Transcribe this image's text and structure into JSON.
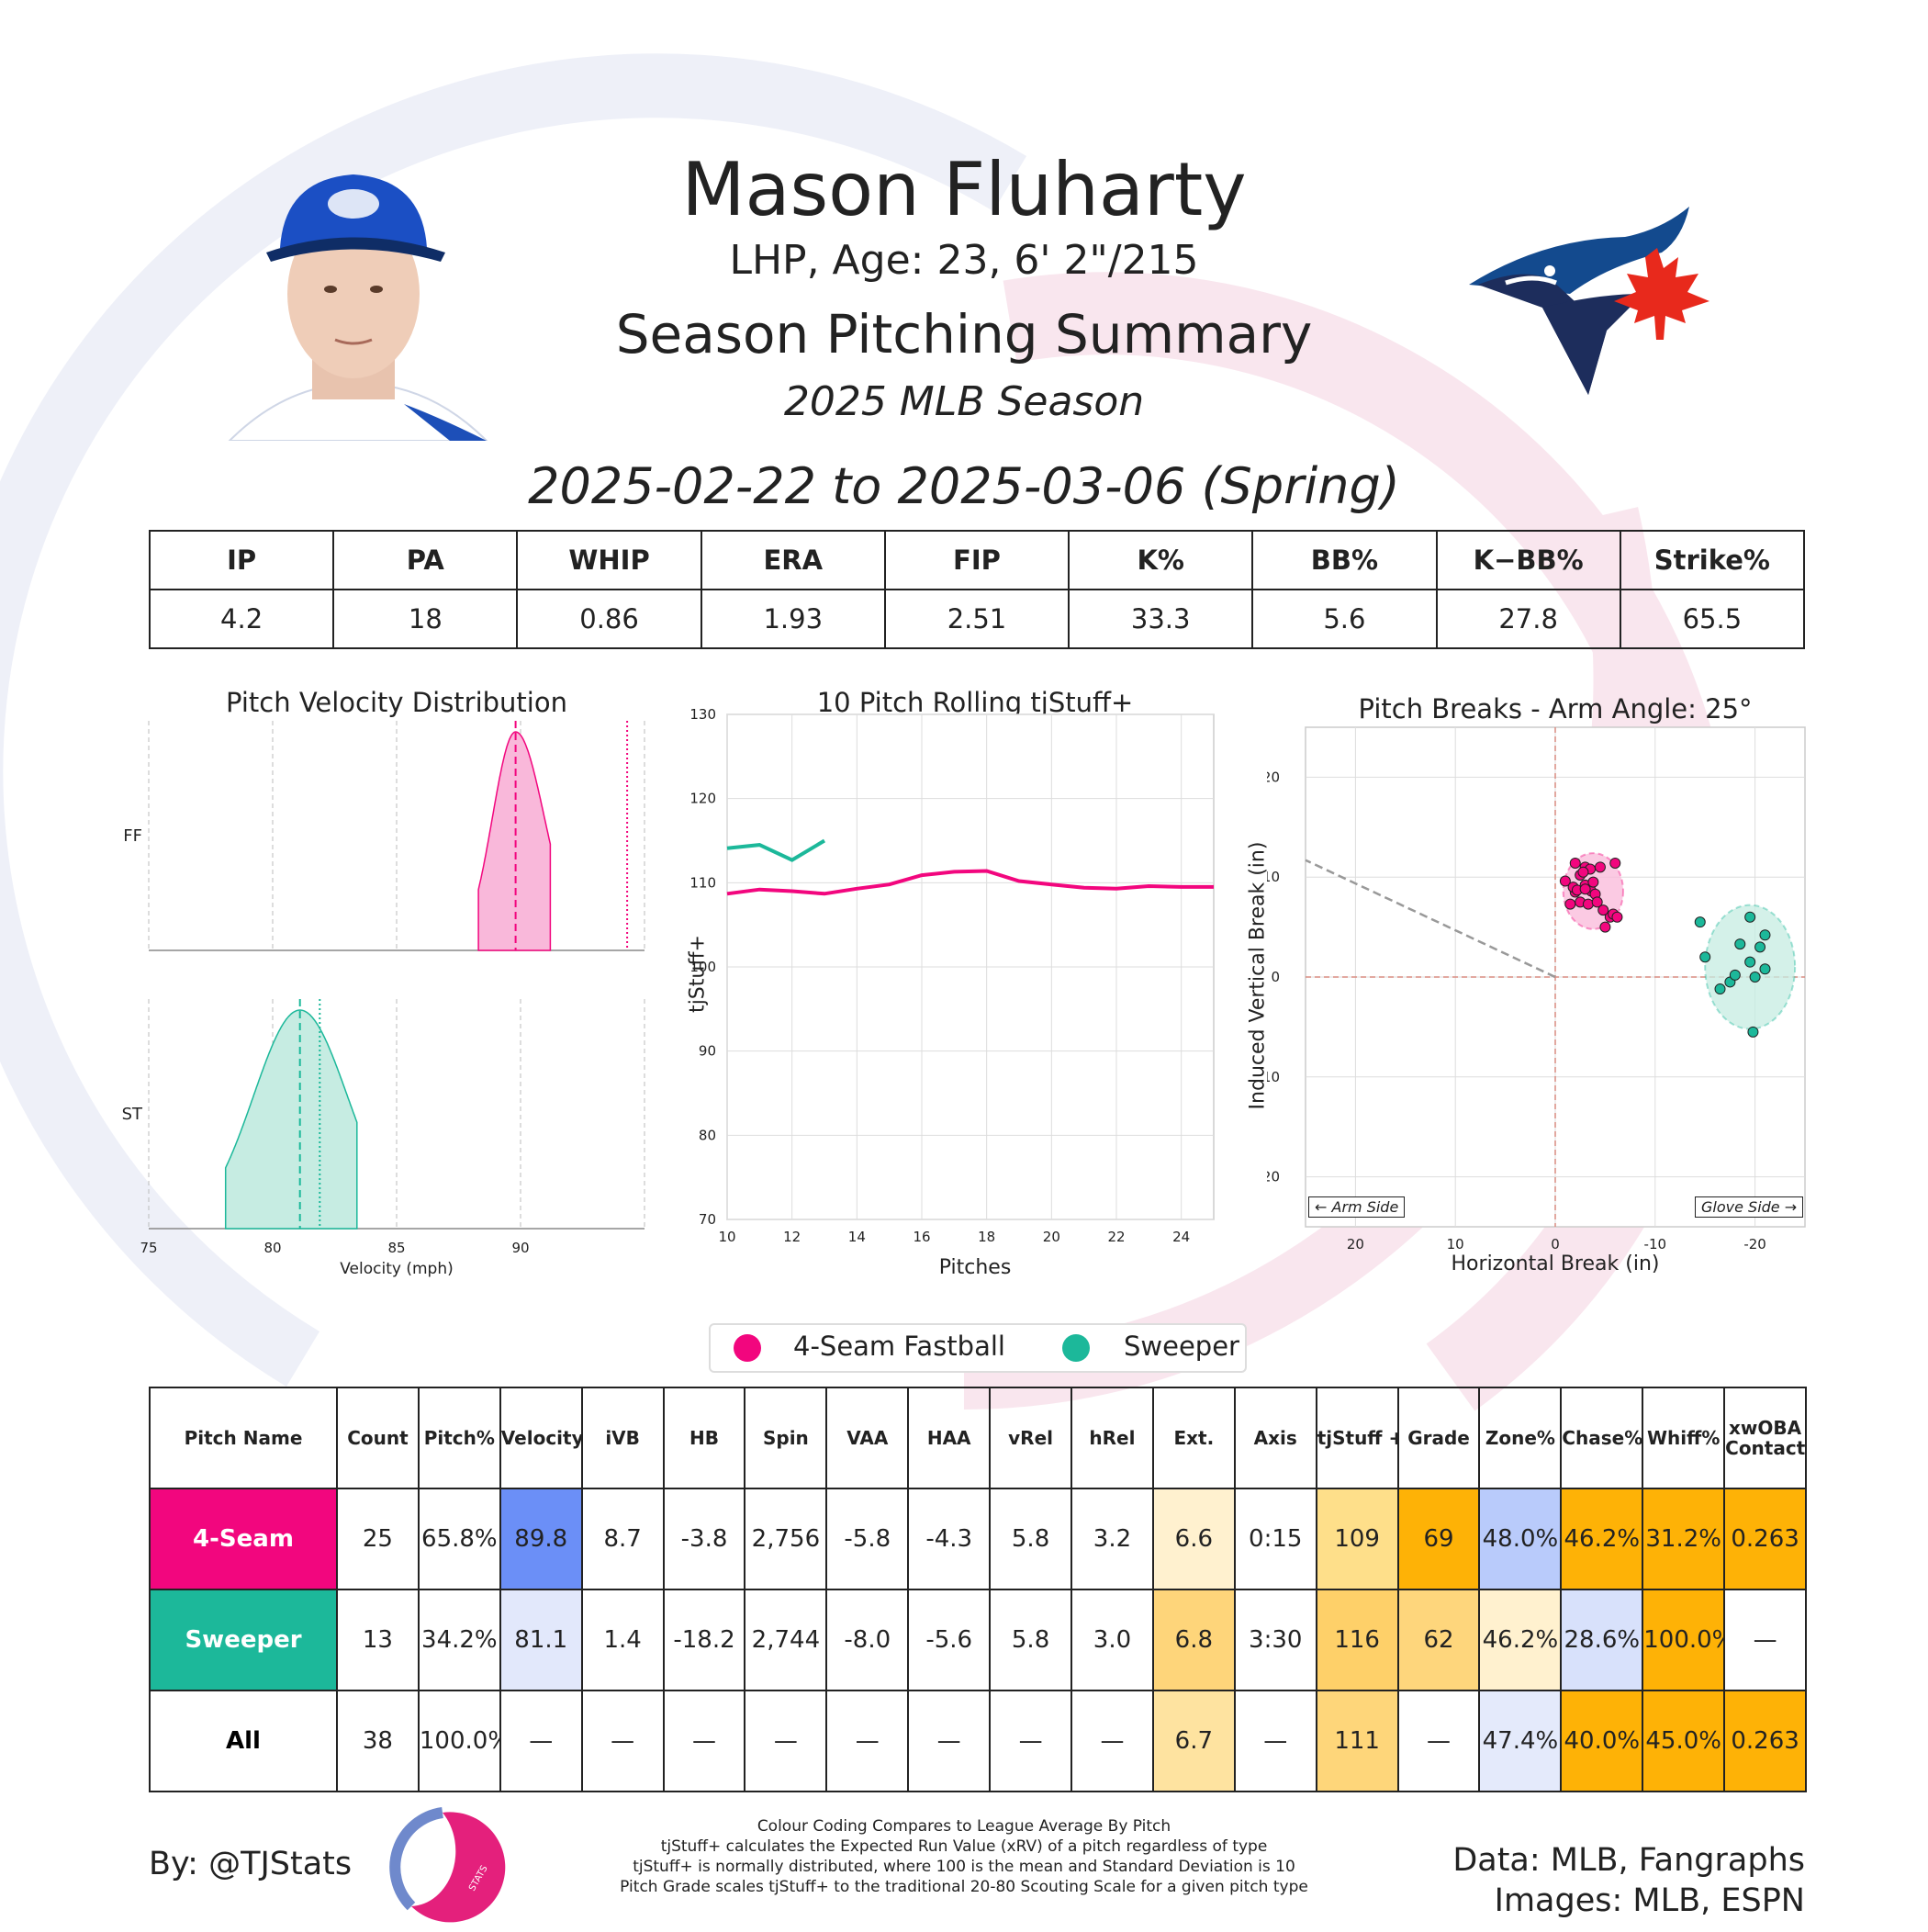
{
  "header": {
    "player_name": "Mason Fluharty",
    "player_info": "LHP, Age: 23, 6' 2\"/215",
    "summary_title": "Season Pitching Summary",
    "season_label": "2025 MLB Season",
    "date_range": "2025-02-22 to 2025-03-06 (Spring)"
  },
  "stat_table": {
    "headers": [
      "IP",
      "PA",
      "WHIP",
      "ERA",
      "FIP",
      "K%",
      "BB%",
      "K−BB%",
      "Strike%"
    ],
    "values": [
      "4.2",
      "18",
      "0.86",
      "1.93",
      "2.51",
      "33.3",
      "5.6",
      "27.8",
      "65.5"
    ]
  },
  "colors": {
    "fastball": "#f2067e",
    "sweeper": "#1cb89a",
    "fastball_fill": "#f9b8da",
    "sweeper_fill": "#c6ece2"
  },
  "chart_data": [
    {
      "type": "area",
      "title": "Pitch Velocity Distribution",
      "xlabel": "Velocity (mph)",
      "xlim": [
        75,
        95
      ],
      "xticks": [
        "75",
        "80",
        "85",
        "90"
      ],
      "series": [
        {
          "name": "FF",
          "range": [
            88.3,
            91.2
          ],
          "mode": 89.8,
          "mean": 89.8,
          "league_avg": 94.3
        },
        {
          "name": "ST",
          "range": [
            78.1,
            83.4
          ],
          "mode": 81.1,
          "mean": 81.1,
          "league_avg": 81.9
        }
      ]
    },
    {
      "type": "line",
      "title": "10 Pitch Rolling tjStuff+",
      "xlabel": "Pitches",
      "ylabel": "tjStuff+",
      "xlim": [
        10,
        25
      ],
      "ylim": [
        70,
        130
      ],
      "xticks": [
        "10",
        "12",
        "14",
        "16",
        "18",
        "20",
        "22",
        "24"
      ],
      "yticks": [
        "70",
        "80",
        "90",
        "100",
        "110",
        "120",
        "130"
      ],
      "series": [
        {
          "name": "Sweeper",
          "x": [
            10,
            11,
            12,
            13
          ],
          "y": [
            114.1,
            114.5,
            112.7,
            115.0
          ]
        },
        {
          "name": "4-Seam Fastball",
          "x": [
            10,
            11,
            12,
            13,
            14,
            15,
            16,
            17,
            18,
            19,
            20,
            21,
            22,
            23,
            24,
            25
          ],
          "y": [
            108.7,
            109.2,
            109.0,
            108.7,
            109.3,
            109.8,
            110.9,
            111.3,
            111.4,
            110.2,
            109.8,
            109.4,
            109.3,
            109.6,
            109.5,
            109.5
          ]
        }
      ]
    },
    {
      "type": "scatter",
      "title": "Pitch Breaks - Arm Angle: 25°",
      "xlabel": "Horizontal Break (in)",
      "ylabel": "Induced Vertical Break (in)",
      "xlim": [
        25,
        -25
      ],
      "ylim": [
        -25,
        25
      ],
      "xticks": [
        "20",
        "10",
        "0",
        "-10",
        "-20"
      ],
      "yticks": [
        "20",
        "10",
        "0",
        "-10",
        "-20"
      ],
      "arm_side_label": "← Arm Side",
      "glove_side_label": "Glove Side →",
      "arm_angle_line": {
        "from": [
          0,
          0
        ],
        "to": [
          25,
          11.7
        ]
      },
      "series": [
        {
          "name": "4-Seam Fastball",
          "x": [
            -1.0,
            -2.0,
            -2.5,
            -3.0,
            -3.5,
            -4.5,
            -6.0,
            -1.8,
            -2.2,
            -3.0,
            -3.6,
            -4.0,
            -2.5,
            -3.3,
            -4.2,
            -1.5,
            -5.5,
            -5.8,
            -6.2,
            -5.0,
            -2.8,
            -3.8,
            -4.8,
            -2.0,
            -3.0
          ],
          "y": [
            9.6,
            8.5,
            10.2,
            11.0,
            10.8,
            11.0,
            11.4,
            9.0,
            8.7,
            9.2,
            8.6,
            8.3,
            7.5,
            7.3,
            7.5,
            7.3,
            6.0,
            6.3,
            6.0,
            5.0,
            10.5,
            9.5,
            6.7,
            11.4,
            8.8
          ],
          "ellipse": {
            "cx": -3.8,
            "cy": 8.6,
            "rx": 3.0,
            "ry": 3.8
          }
        },
        {
          "name": "Sweeper",
          "x": [
            -14.5,
            -15.0,
            -16.5,
            -17.5,
            -18.0,
            -18.5,
            -19.5,
            -19.5,
            -20.0,
            -20.5,
            -21.0,
            -21.0,
            -19.8
          ],
          "y": [
            5.5,
            2.0,
            -1.2,
            -0.5,
            0.2,
            3.3,
            1.5,
            6.0,
            0.0,
            3.0,
            4.2,
            0.8,
            -5.5
          ],
          "ellipse": {
            "cx": -19.5,
            "cy": 1.0,
            "rx": 4.5,
            "ry": 6.2
          }
        }
      ]
    }
  ],
  "velocity_labels": [
    "FF",
    "ST"
  ],
  "legend": {
    "items": [
      "4-Seam Fastball",
      "Sweeper"
    ]
  },
  "pitch_table": {
    "headers": [
      "Pitch Name",
      "Count",
      "Pitch%",
      "Velocity",
      "iVB",
      "HB",
      "Spin",
      "VAA",
      "HAA",
      "vRel",
      "hRel",
      "Ext.",
      "Axis",
      "tjStuff +",
      "Grade",
      "Zone%",
      "Chase%",
      "Whiff%",
      "xwOBA Contact"
    ],
    "rows": [
      {
        "name": "4-Seam",
        "name_color": "#f2067e",
        "cells": [
          "25",
          "65.8%",
          "89.8",
          "8.7",
          "-3.8",
          "2,756",
          "-5.8",
          "-4.3",
          "5.8",
          "3.2",
          "6.6",
          "0:15",
          "109",
          "69",
          "48.0%",
          "46.2%",
          "31.2%",
          "0.263"
        ],
        "cell_colors": [
          "",
          "",
          "#6b8ff7",
          "",
          "",
          "",
          "",
          "",
          "",
          "",
          "#fff1cf",
          "",
          "#fedf8a",
          "#feb206",
          "#b9cbfb",
          "#feb206",
          "#feb206",
          "#feb206"
        ]
      },
      {
        "name": "Sweeper",
        "name_color": "#1cb89a",
        "cells": [
          "13",
          "34.2%",
          "81.1",
          "1.4",
          "-18.2",
          "2,744",
          "-8.0",
          "-5.6",
          "5.8",
          "3.0",
          "6.8",
          "3:30",
          "116",
          "62",
          "46.2%",
          "28.6%",
          "100.0%",
          "—"
        ],
        "cell_colors": [
          "",
          "",
          "#e2e8fb",
          "",
          "",
          "",
          "",
          "",
          "",
          "",
          "#fed57a",
          "",
          "#fed069",
          "#fed67c",
          "#fff1cf",
          "#d8e1fb",
          "#feb206",
          ""
        ]
      },
      {
        "name": "All",
        "name_color": "",
        "cells": [
          "38",
          "100.0%",
          "—",
          "—",
          "—",
          "—",
          "—",
          "—",
          "—",
          "—",
          "6.7",
          "—",
          "111",
          "—",
          "47.4%",
          "40.0%",
          "45.0%",
          "0.263"
        ],
        "cell_colors": [
          "",
          "",
          "",
          "",
          "",
          "",
          "",
          "",
          "",
          "",
          "#fee3a0",
          "",
          "#fed67a",
          "",
          "#e4eafb",
          "#feb206",
          "#feb206",
          "#feb206"
        ]
      }
    ]
  },
  "footer": {
    "byline": "By: @TJStats",
    "credits_line1": "Data: MLB, Fangraphs",
    "credits_line2": "Images: MLB, ESPN",
    "notes": [
      "Colour Coding Compares to League Average By Pitch",
      "tjStuff+ calculates the Expected Run Value (xRV) of a pitch regardless of type",
      "tjStuff+ is normally distributed, where 100 is the mean and Standard Deviation is 10",
      "Pitch Grade scales tjStuff+ to the traditional 20-80 Scouting Scale for a given pitch type"
    ],
    "stats_logo_text": "STATS"
  }
}
